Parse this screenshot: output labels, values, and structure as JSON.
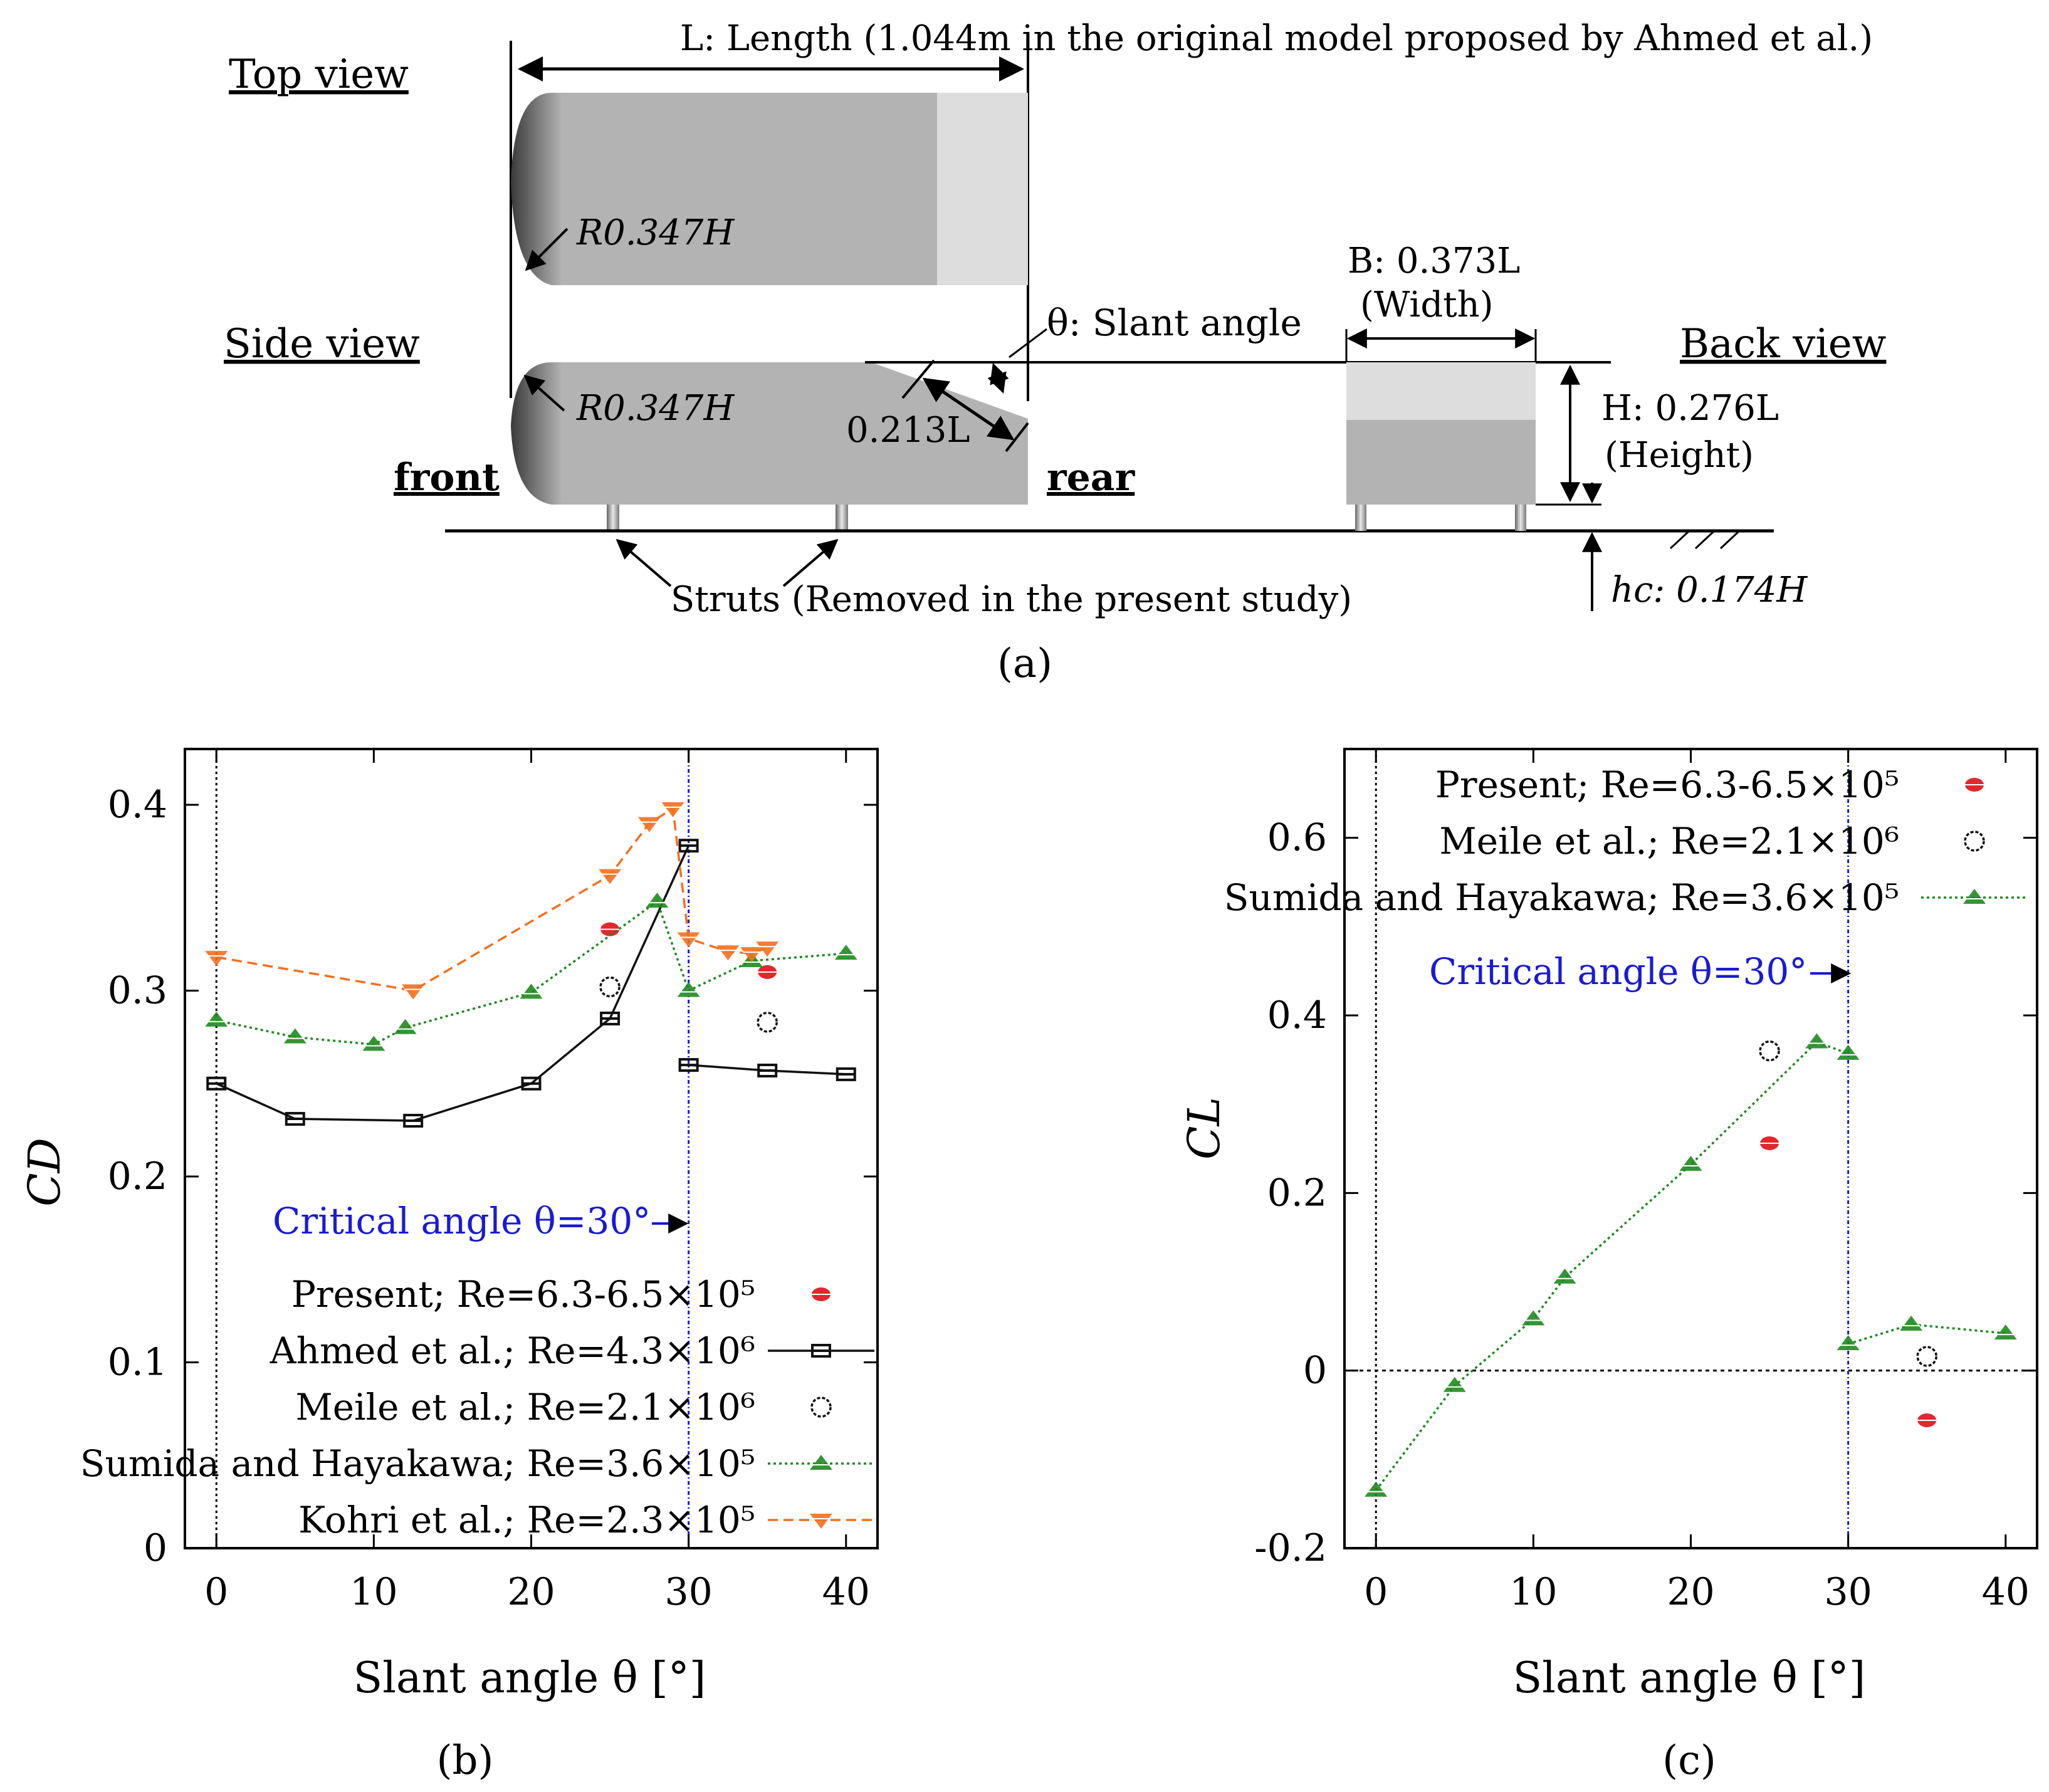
{
  "panel_a": {
    "top_view": "Top view",
    "side_view": "Side view",
    "back_view": "Back view",
    "length_label": "L: Length (1.044m in the original model proposed by Ahmed et al.)",
    "radius_top": "R0.347H",
    "radius_side": "R0.347H",
    "slant_angle": "θ: Slant angle",
    "slant_length": "0.213L",
    "front": "front",
    "rear": "rear",
    "width_label": "B: 0.373L",
    "width_word": "(Width)",
    "height_label": "H: 0.276L",
    "height_word": "(Height)",
    "clearance": "hc: 0.174H",
    "struts": "Struts (Removed in the present study)",
    "caption": "(a)"
  },
  "colors": {
    "present": "#e0282d",
    "ahmed": "#111111",
    "meile": "#111111",
    "sumida": "#1f8a1f",
    "kohri": "#f07020",
    "critical": "#1a1ad6"
  },
  "chart_data": [
    {
      "id": "b",
      "type": "line",
      "caption": "(b)",
      "xlabel": "Slant angle θ [°]",
      "ylabel": "CD",
      "xlim": [
        -2,
        42
      ],
      "ylim": [
        0,
        0.43
      ],
      "xticks": [
        "0",
        "10",
        "20",
        "30",
        "40"
      ],
      "yticks": [
        "0",
        "0.1",
        "0.2",
        "0.3",
        "0.4"
      ],
      "critical_label": "Critical angle θ=30°",
      "legend_position": "bottom-right",
      "series": [
        {
          "name": "Present; Re=6.3-6.5×10⁵",
          "marker": "disc",
          "line": "none",
          "x": [
            25,
            35
          ],
          "y": [
            0.333,
            0.31
          ]
        },
        {
          "name": "Ahmed et al.; Re=4.3×10⁶",
          "marker": "bar",
          "line": "solid",
          "x": [
            0,
            5,
            12.5,
            20,
            25,
            30,
            30,
            35,
            40
          ],
          "y": [
            0.25,
            0.231,
            0.23,
            0.25,
            0.285,
            0.378,
            0.26,
            0.257,
            0.255
          ]
        },
        {
          "name": "Meile et al.; Re=2.1×10⁶",
          "marker": "circle",
          "line": "none",
          "x": [
            25,
            35
          ],
          "y": [
            0.302,
            0.283
          ]
        },
        {
          "name": "Sumida and Hayakawa; Re=3.6×10⁵",
          "marker": "triangle",
          "line": "dotted",
          "x": [
            0,
            5,
            10,
            12,
            20,
            28,
            30,
            34,
            40
          ],
          "y": [
            0.284,
            0.275,
            0.271,
            0.28,
            0.299,
            0.348,
            0.3,
            0.316,
            0.32
          ]
        },
        {
          "name": "Kohri et al.; Re=2.3×10⁵",
          "marker": "triangle-down",
          "line": "dashed",
          "x": [
            0,
            12.5,
            25,
            27.5,
            29,
            30,
            32.5,
            34,
            35
          ],
          "y": [
            0.318,
            0.3,
            0.362,
            0.39,
            0.398,
            0.328,
            0.321,
            0.32,
            0.323
          ]
        }
      ]
    },
    {
      "id": "c",
      "type": "line",
      "caption": "(c)",
      "xlabel": "Slant angle θ [°]",
      "ylabel": "CL",
      "xlim": [
        -2,
        42
      ],
      "ylim": [
        -0.2,
        0.7
      ],
      "xticks": [
        "0",
        "10",
        "20",
        "30",
        "40"
      ],
      "yticks": [
        "-0.2",
        "0",
        "0.2",
        "0.4",
        "0.6"
      ],
      "critical_label": "Critical angle θ=30°",
      "legend_position": "top-right",
      "series": [
        {
          "name": "Present; Re=6.3-6.5×10⁵",
          "marker": "disc",
          "line": "none",
          "x": [
            25,
            35
          ],
          "y": [
            0.256,
            -0.056
          ]
        },
        {
          "name": "Meile et al.; Re=2.1×10⁶",
          "marker": "circle",
          "line": "none",
          "x": [
            25,
            35
          ],
          "y": [
            0.36,
            0.016
          ]
        },
        {
          "name": "Sumida and Hayakawa; Re=3.6×10⁵",
          "marker": "triangle",
          "line": "dotted",
          "x": [
            0,
            5,
            10,
            12,
            20,
            28,
            30,
            30,
            34,
            40
          ],
          "y": [
            -0.135,
            -0.017,
            0.058,
            0.105,
            0.232,
            0.37,
            0.357,
            0.03,
            0.052,
            0.042
          ]
        }
      ]
    }
  ]
}
